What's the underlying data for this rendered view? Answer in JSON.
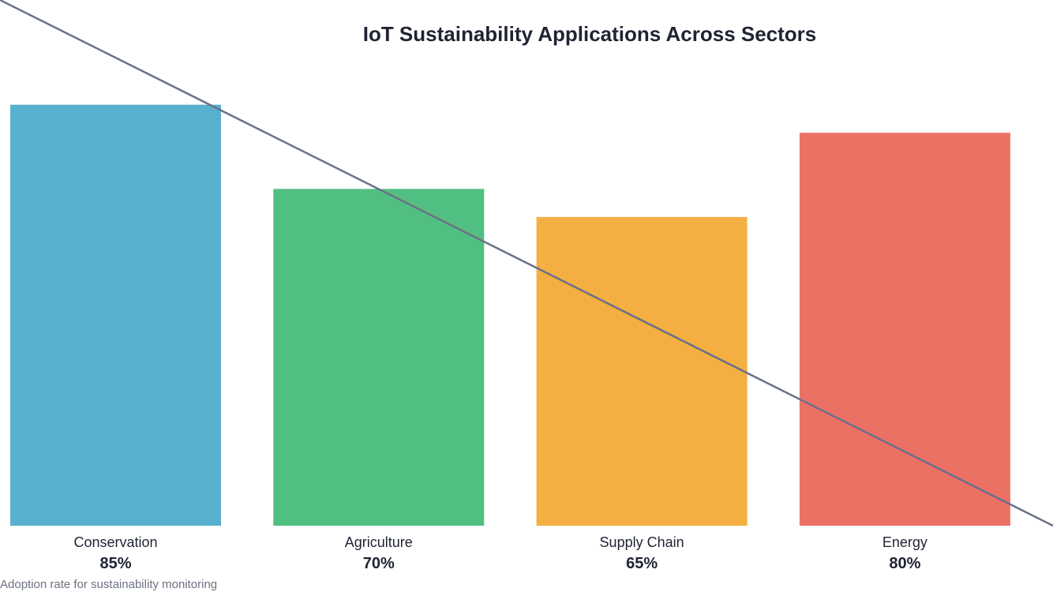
{
  "chart_data": {
    "type": "bar",
    "title": "IoT Sustainability Applications Across Sectors",
    "caption": "Adoption rate for sustainability monitoring",
    "categories": [
      "Conservation",
      "Agriculture",
      "Supply Chain",
      "Energy"
    ],
    "values": [
      85,
      70,
      65,
      80
    ],
    "value_labels": [
      "85%",
      "70%",
      "65%",
      "80%"
    ],
    "colors": [
      "#57b0ce",
      "#52bf82",
      "#f4af42",
      "#ec7165"
    ],
    "line_color": "#6b7088",
    "ylim": [
      10,
      100
    ],
    "grid": false,
    "legend": "none"
  }
}
